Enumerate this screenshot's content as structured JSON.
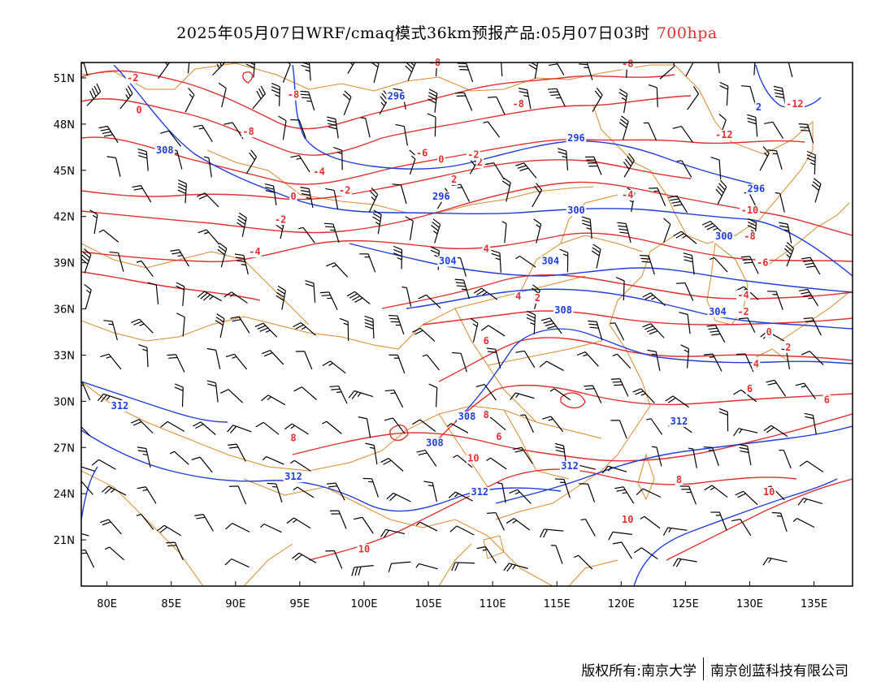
{
  "title": {
    "text": "2025年05月07日WRF/cmaq模式36km预报产品:05月07日03时",
    "level": "700hpa",
    "level_color": "#e03030"
  },
  "axes": {
    "x_ticks": [
      "80E",
      "85E",
      "90E",
      "95E",
      "100E",
      "105E",
      "110E",
      "115E",
      "120E",
      "125E",
      "130E",
      "135E"
    ],
    "y_ticks": [
      "51N",
      "48N",
      "45N",
      "42N",
      "39N",
      "36N",
      "33N",
      "30N",
      "27N",
      "24N",
      "21N"
    ],
    "lon_range": [
      78,
      138
    ],
    "lat_range": [
      18,
      52
    ]
  },
  "colors": {
    "temperature_contour": "#e03030",
    "height_contour": "#1f3fd8",
    "borders": "#d98a2b",
    "wind_barb": "#000000"
  },
  "temperature_labels": [
    {
      "text": "-2",
      "lon": 82,
      "lat": 50.8
    },
    {
      "text": "0",
      "lon": 82.5,
      "lat": 48.7
    },
    {
      "text": "-8",
      "lon": 94.5,
      "lat": 49.7
    },
    {
      "text": "-8",
      "lon": 91,
      "lat": 47.3
    },
    {
      "text": "-8",
      "lon": 105.5,
      "lat": 51.8
    },
    {
      "text": "-8",
      "lon": 112,
      "lat": 49.1
    },
    {
      "text": "-6",
      "lon": 104.5,
      "lat": 45.9
    },
    {
      "text": "-4",
      "lon": 96.5,
      "lat": 44.7
    },
    {
      "text": "-2",
      "lon": 98.5,
      "lat": 43.5
    },
    {
      "text": "0",
      "lon": 94.5,
      "lat": 43.1
    },
    {
      "text": "-2",
      "lon": 93.5,
      "lat": 41.6
    },
    {
      "text": "-4",
      "lon": 91.5,
      "lat": 39.5
    },
    {
      "text": "0",
      "lon": 106,
      "lat": 45.5
    },
    {
      "text": "2",
      "lon": 109,
      "lat": 45.3
    },
    {
      "text": "-2",
      "lon": 108.5,
      "lat": 45.8
    },
    {
      "text": "2",
      "lon": 107,
      "lat": 44.2
    },
    {
      "text": "4",
      "lon": 109.5,
      "lat": 39.7
    },
    {
      "text": "-8",
      "lon": 120.5,
      "lat": 51.7
    },
    {
      "text": "-4",
      "lon": 120.5,
      "lat": 43.2
    },
    {
      "text": "-12",
      "lon": 133.5,
      "lat": 49.1
    },
    {
      "text": "-12",
      "lon": 128,
      "lat": 47.1
    },
    {
      "text": "-10",
      "lon": 130,
      "lat": 42.2
    },
    {
      "text": "-8",
      "lon": 130,
      "lat": 40.5
    },
    {
      "text": "-6",
      "lon": 131,
      "lat": 38.8
    },
    {
      "text": "-4",
      "lon": 129.5,
      "lat": 36.7
    },
    {
      "text": "-2",
      "lon": 129.5,
      "lat": 35.6
    },
    {
      "text": "0",
      "lon": 131.5,
      "lat": 34.3
    },
    {
      "text": "2",
      "lon": 133,
      "lat": 33.3
    },
    {
      "text": "4",
      "lon": 130.5,
      "lat": 32.2
    },
    {
      "text": "6",
      "lon": 130,
      "lat": 30.6
    },
    {
      "text": "6",
      "lon": 136,
      "lat": 29.9
    },
    {
      "text": "4",
      "lon": 112,
      "lat": 36.6
    },
    {
      "text": "2",
      "lon": 113.5,
      "lat": 36.5
    },
    {
      "text": "6",
      "lon": 109.5,
      "lat": 33.7
    },
    {
      "text": "8",
      "lon": 109.5,
      "lat": 28.9
    },
    {
      "text": "6",
      "lon": 110.5,
      "lat": 27.5
    },
    {
      "text": "8",
      "lon": 94.5,
      "lat": 27.4
    },
    {
      "text": "10",
      "lon": 108.5,
      "lat": 26.1
    },
    {
      "text": "10",
      "lon": 100,
      "lat": 20.2
    },
    {
      "text": "8",
      "lon": 124.5,
      "lat": 24.7
    },
    {
      "text": "10",
      "lon": 131.5,
      "lat": 23.9
    },
    {
      "text": "10",
      "lon": 120.5,
      "lat": 22.1
    }
  ],
  "height_labels": [
    {
      "text": "296",
      "lon": 102.5,
      "lat": 49.6
    },
    {
      "text": "308",
      "lon": 84.5,
      "lat": 46.1
    },
    {
      "text": "296",
      "lon": 116.5,
      "lat": 46.9
    },
    {
      "text": "296",
      "lon": 106,
      "lat": 43.1
    },
    {
      "text": "296",
      "lon": 130.5,
      "lat": 43.6
    },
    {
      "text": "300",
      "lon": 116.5,
      "lat": 42.2
    },
    {
      "text": "300",
      "lon": 128,
      "lat": 40.5
    },
    {
      "text": "304",
      "lon": 106.5,
      "lat": 38.9
    },
    {
      "text": "304",
      "lon": 114.5,
      "lat": 38.9
    },
    {
      "text": "308",
      "lon": 115.5,
      "lat": 35.7
    },
    {
      "text": "304",
      "lon": 127.5,
      "lat": 35.6
    },
    {
      "text": "312",
      "lon": 81,
      "lat": 29.5
    },
    {
      "text": "308",
      "lon": 108,
      "lat": 28.8
    },
    {
      "text": "308",
      "lon": 105.5,
      "lat": 27.1
    },
    {
      "text": "312",
      "lon": 94.5,
      "lat": 24.9
    },
    {
      "text": "312",
      "lon": 109,
      "lat": 23.9
    },
    {
      "text": "312",
      "lon": 116,
      "lat": 25.6
    },
    {
      "text": "312",
      "lon": 124.5,
      "lat": 28.5
    },
    {
      "text": "2",
      "lon": 130.7,
      "lat": 48.9
    }
  ],
  "footer": {
    "left": "版权所有:南京大学",
    "right": "南京创蓝科技有限公司"
  }
}
